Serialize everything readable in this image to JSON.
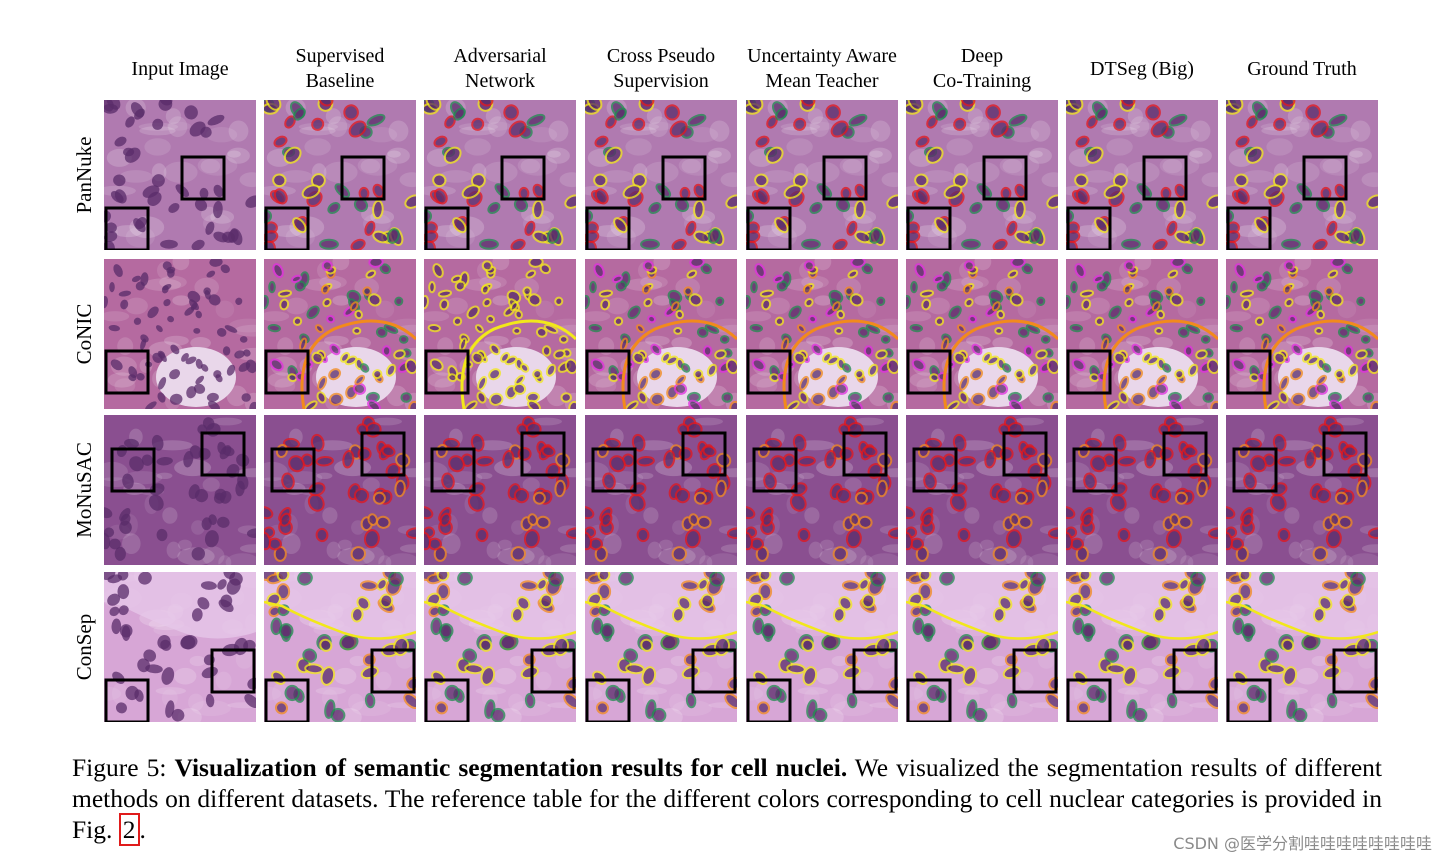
{
  "columns": [
    {
      "key": "input",
      "lines": [
        "Input Image"
      ]
    },
    {
      "key": "supervised",
      "lines": [
        "Supervised",
        "Baseline"
      ]
    },
    {
      "key": "adversarial",
      "lines": [
        "Adversarial",
        "Network"
      ]
    },
    {
      "key": "cps",
      "lines": [
        "Cross Pseudo",
        "Supervision"
      ]
    },
    {
      "key": "ua-mt",
      "lines": [
        "Uncertainty Aware",
        "Mean Teacher"
      ]
    },
    {
      "key": "deep-cotraining",
      "lines": [
        "Deep",
        "Co-Training"
      ]
    },
    {
      "key": "dtseg",
      "lines": [
        "DTSeg (Big)"
      ]
    },
    {
      "key": "ground-truth",
      "lines": [
        "Ground Truth"
      ]
    }
  ],
  "rows": [
    {
      "key": "pannuke",
      "label": "PanNuke"
    },
    {
      "key": "conic",
      "label": "CoNIC"
    },
    {
      "key": "monusac",
      "label": "MoNuSAC"
    },
    {
      "key": "consep",
      "label": "ConSep"
    }
  ],
  "caption": {
    "prefix": "Figure 5: ",
    "bold": "Visualization of semantic segmentation results for cell nuclei.",
    "body": " We visualized the segmentation results of different methods on different datasets. The reference table for the different colors corresponding to cell nuclear categories is provided in Fig. ",
    "ref": "2",
    "suffix": "."
  },
  "watermark": "CSDN @医学分割哇哇哇哇哇哇哇哇",
  "colors": {
    "tissue_pannuke": "#b07ab0",
    "tissue_conic": "#b56aa0",
    "tissue_monusac": "#8a4f90",
    "tissue_consep": "#d7a6d6",
    "nucleus_dark": "#5a2c6a",
    "seg_red": "#e3161b",
    "seg_green": "#1f8a4f",
    "seg_yellow": "#f2e81a",
    "seg_magenta": "#e22de0",
    "seg_orange": "#f28a1c",
    "box": "#000000",
    "ref_box": "#e01b1b"
  }
}
